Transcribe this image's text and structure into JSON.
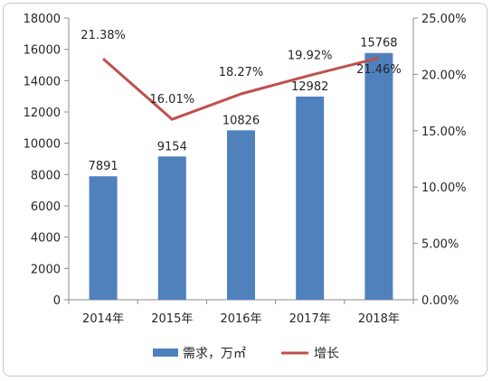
{
  "chart_data": {
    "type": "bar",
    "categories": [
      "2014年",
      "2015年",
      "2016年",
      "2017年",
      "2018年"
    ],
    "series": [
      {
        "name": "需求，万㎡",
        "type": "bar",
        "axis": "left",
        "values": [
          7891,
          9154,
          10826,
          12982,
          15768
        ],
        "labels": [
          "7891",
          "9154",
          "10826",
          "12982",
          "15768"
        ],
        "color": "#4f81bd"
      },
      {
        "name": "增长",
        "type": "line",
        "axis": "right",
        "values": [
          21.38,
          16.01,
          18.27,
          19.92,
          21.46
        ],
        "labels": [
          "21.38%",
          "16.01%",
          "18.27%",
          "19.92%",
          "21.46%"
        ],
        "color": "#c0504d"
      }
    ],
    "y_left": {
      "range": [
        0,
        18000
      ],
      "ticks": [
        "0",
        "2000",
        "4000",
        "6000",
        "8000",
        "10000",
        "12000",
        "14000",
        "16000",
        "18000"
      ]
    },
    "y_right": {
      "range": [
        0,
        25
      ],
      "ticks": [
        "0.00%",
        "5.00%",
        "10.00%",
        "15.00%",
        "20.00%",
        "25.00%"
      ]
    },
    "grid": false,
    "legend_position": "bottom"
  }
}
